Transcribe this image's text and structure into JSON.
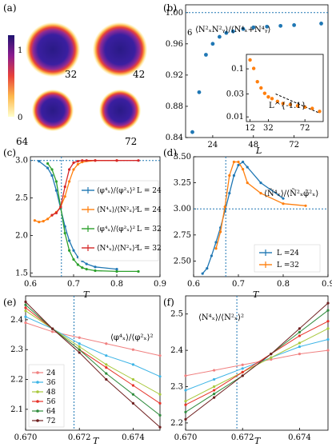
{
  "panel_a": {
    "label": "(a)",
    "colorbar_ticks": [
      "1",
      "0"
    ],
    "disk_labels": [
      "32",
      "42",
      "64",
      "72"
    ]
  },
  "chart_data": [
    {
      "panel": "b",
      "label": "(b)",
      "type": "scatter",
      "annotation": "⟨N²ₓN²ᵧ⟩/⟨N⁴ₓ+N⁴ᵧ⟩",
      "reference_value": 1.0,
      "reference_value_label": "6",
      "xlabel": "L",
      "xticks": [
        24,
        48,
        72
      ],
      "xlim": [
        8,
        92
      ],
      "ylim": [
        0.84,
        1.01
      ],
      "yticks": [
        "0.84",
        "0.88",
        "0.92",
        "0.96",
        "1.00"
      ],
      "series": [
        {
          "color": "#1f77b4",
          "x": [
            12,
            16,
            20,
            24,
            28,
            32,
            36,
            42,
            48,
            56,
            64,
            72,
            88
          ],
          "y": [
            0.847,
            0.898,
            0.946,
            0.96,
            0.969,
            0.974,
            0.976,
            0.979,
            0.981,
            0.982,
            0.983,
            0.984,
            0.986
          ]
        }
      ],
      "inset": {
        "type": "scatter",
        "log_y": true,
        "annotation": "L^{-1.1}",
        "xticks": [
          12,
          32,
          72
        ],
        "yticks": [
          "0.1",
          "0.03",
          "0.01"
        ],
        "xlim": [
          8,
          92
        ],
        "ylim": [
          0.008,
          0.2
        ],
        "points": {
          "color": "#ff7f0e",
          "x": [
            12,
            16,
            20,
            24,
            28,
            32,
            36,
            42,
            48,
            56,
            64,
            72,
            80,
            88
          ],
          "y": [
            0.153,
            0.102,
            0.054,
            0.04,
            0.031,
            0.026,
            0.024,
            0.021,
            0.019,
            0.018,
            0.017,
            0.016,
            0.015,
            0.013
          ]
        },
        "fit": {
          "x": [
            40,
            88
          ],
          "y": [
            0.03,
            0.012
          ]
        }
      }
    },
    {
      "panel": "c",
      "label": "(c)",
      "type": "line",
      "xlabel": "T",
      "xlim": [
        0.6,
        0.9
      ],
      "ylim": [
        1.45,
        3.05
      ],
      "xticks": [
        "0.6",
        "0.7",
        "0.8",
        "0.9"
      ],
      "yticks": [
        "1.5",
        "2.0",
        "2.5",
        "3.0"
      ],
      "critical_T": 0.6718,
      "reference_value": 3.0,
      "series": [
        {
          "name": "⟨φ⁴ₓ⟩/⟨φ²ₓ⟩² L = 24",
          "color": "#1f77b4",
          "x": [
            0.62,
            0.64,
            0.65,
            0.66,
            0.67,
            0.68,
            0.69,
            0.7,
            0.71,
            0.72,
            0.73,
            0.75,
            0.8
          ],
          "y": [
            2.99,
            2.9,
            2.8,
            2.6,
            2.36,
            2.12,
            1.93,
            1.8,
            1.71,
            1.66,
            1.62,
            1.58,
            1.55
          ]
        },
        {
          "name": "⟨N⁴ₓ⟩/⟨N²ₓ⟩² L = 24",
          "color": "#ff7f0e",
          "x": [
            0.61,
            0.62,
            0.63,
            0.64,
            0.65,
            0.66,
            0.67,
            0.68,
            0.69,
            0.7,
            0.71,
            0.72,
            0.75,
            0.8
          ],
          "y": [
            2.2,
            2.18,
            2.19,
            2.22,
            2.27,
            2.31,
            2.38,
            2.52,
            2.72,
            2.88,
            2.95,
            2.98,
            3.0,
            3.0
          ]
        },
        {
          "name": "⟨φ⁴ₓ⟩/⟨φ²ₓ⟩² L = 32",
          "color": "#2ca02c",
          "x": [
            0.64,
            0.65,
            0.66,
            0.67,
            0.68,
            0.69,
            0.7,
            0.71,
            0.72,
            0.73,
            0.75,
            0.8,
            0.85
          ],
          "y": [
            2.96,
            2.88,
            2.72,
            2.38,
            2.03,
            1.8,
            1.68,
            1.61,
            1.57,
            1.55,
            1.53,
            1.52,
            1.52
          ]
        },
        {
          "name": "⟨N⁴ₓ⟩/⟨N²ₓ⟩² L = 32",
          "color": "#d62728",
          "x": [
            0.65,
            0.66,
            0.67,
            0.68,
            0.69,
            0.7,
            0.71,
            0.72,
            0.73,
            0.75,
            0.8,
            0.85
          ],
          "y": [
            2.27,
            2.3,
            2.38,
            2.65,
            2.88,
            2.97,
            2.99,
            3.0,
            3.0,
            3.0,
            3.0,
            3.0
          ]
        }
      ],
      "legend_position": "center-right",
      "legend_labels": [
        {
          "ratio": "⟨φ⁴ₓ⟩/⟨φ²ₓ⟩²",
          "L": "L = 24"
        },
        {
          "ratio": "⟨N⁴ₓ⟩/⟨N²ₓ⟩²",
          "L": "L = 24"
        },
        {
          "ratio": "⟨φ⁴ₓ⟩/⟨φ²ₓ⟩²",
          "L": "L = 32"
        },
        {
          "ratio": "⟨N⁴ₓ⟩/⟨N²ₓ⟩²",
          "L": "L = 32"
        }
      ]
    },
    {
      "panel": "d",
      "label": "(d)",
      "type": "line",
      "xlabel": "T",
      "annotation": "⟨Ñ⁴ₓ⟩/⟨Ñ²ₓφ̃²ₓ⟩",
      "xlim": [
        0.6,
        0.9
      ],
      "ylim": [
        2.35,
        3.5
      ],
      "xticks": [
        "0.6",
        "0.7",
        "0.8",
        "0.9"
      ],
      "yticks": [
        "2.50",
        "2.75",
        "3.00",
        "3.25",
        "3.50"
      ],
      "critical_T": 0.6718,
      "reference_value": 3.0,
      "series": [
        {
          "name": "L =24",
          "color": "#1f77b4",
          "x": [
            0.62,
            0.63,
            0.64,
            0.65,
            0.66,
            0.67,
            0.68,
            0.69,
            0.7,
            0.71,
            0.72,
            0.75,
            0.8
          ],
          "y": [
            2.38,
            2.43,
            2.55,
            2.68,
            2.82,
            2.98,
            3.15,
            3.32,
            3.42,
            3.45,
            3.4,
            3.25,
            3.1
          ]
        },
        {
          "name": "L =32",
          "color": "#ff7f0e",
          "x": [
            0.65,
            0.66,
            0.67,
            0.68,
            0.69,
            0.7,
            0.71,
            0.72,
            0.75,
            0.8,
            0.85
          ],
          "y": [
            2.62,
            2.78,
            3.02,
            3.32,
            3.45,
            3.45,
            3.38,
            3.25,
            3.15,
            3.05,
            3.03
          ]
        }
      ],
      "legend_position": "lower-right"
    },
    {
      "panel": "e",
      "label": "(e)",
      "type": "line",
      "xlabel": "T",
      "annotation": "⟨φ⁴ₓ⟩/⟨φ²ₓ⟩²",
      "xlim": [
        0.67,
        0.675
      ],
      "ylim": [
        2.03,
        2.48
      ],
      "xticks": [
        "0.670",
        "0.672",
        "0.674"
      ],
      "yticks": [
        "2.1",
        "2.2",
        "2.3",
        "2.4"
      ],
      "critical_T": 0.6718,
      "series": [
        {
          "name": "24",
          "color": "#f08080",
          "x": [
            0.67,
            0.671,
            0.672,
            0.673,
            0.674,
            0.675
          ],
          "y": [
            2.39,
            2.36,
            2.34,
            2.32,
            2.3,
            2.28
          ]
        },
        {
          "name": "36",
          "color": "#3cb4e6",
          "x": [
            0.67,
            0.671,
            0.672,
            0.673,
            0.674,
            0.675
          ],
          "y": [
            2.41,
            2.37,
            2.32,
            2.28,
            2.25,
            2.21
          ]
        },
        {
          "name": "48",
          "color": "#a8c83c",
          "x": [
            0.67,
            0.671,
            0.672,
            0.673,
            0.674,
            0.675
          ],
          "y": [
            2.43,
            2.37,
            2.31,
            2.25,
            2.2,
            2.15
          ]
        },
        {
          "name": "56",
          "color": "#e63228",
          "x": [
            0.67,
            0.671,
            0.672,
            0.673,
            0.674,
            0.675
          ],
          "y": [
            2.44,
            2.37,
            2.3,
            2.24,
            2.18,
            2.12
          ]
        },
        {
          "name": "64",
          "color": "#2e8b3c",
          "x": [
            0.67,
            0.671,
            0.672,
            0.673,
            0.674,
            0.675
          ],
          "y": [
            2.45,
            2.37,
            2.3,
            2.22,
            2.15,
            2.08
          ]
        },
        {
          "name": "72",
          "color": "#6e1e1e",
          "x": [
            0.67,
            0.671,
            0.672,
            0.673,
            0.674,
            0.675
          ],
          "y": [
            2.46,
            2.37,
            2.29,
            2.2,
            2.12,
            2.04
          ]
        }
      ],
      "legend_position": "lower-left"
    },
    {
      "panel": "f",
      "label": "(f)",
      "type": "line",
      "xlabel": "T",
      "annotation": "⟨N⁴ₓ⟩/⟨N²ₓ⟩²",
      "xlim": [
        0.67,
        0.675
      ],
      "ylim": [
        2.18,
        2.55
      ],
      "xticks": [
        "0.670",
        "0.672",
        "0.674"
      ],
      "yticks": [
        "2.2",
        "2.3",
        "2.4",
        "2.5"
      ],
      "critical_T": 0.6718,
      "series": [
        {
          "name": "24",
          "color": "#f08080",
          "x": [
            0.67,
            0.671,
            0.672,
            0.673,
            0.674,
            0.675
          ],
          "y": [
            2.33,
            2.345,
            2.36,
            2.375,
            2.39,
            2.4
          ]
        },
        {
          "name": "36",
          "color": "#3cb4e6",
          "x": [
            0.67,
            0.671,
            0.672,
            0.673,
            0.674,
            0.675
          ],
          "y": [
            2.29,
            2.32,
            2.35,
            2.38,
            2.41,
            2.43
          ]
        },
        {
          "name": "48",
          "color": "#a8c83c",
          "x": [
            0.67,
            0.671,
            0.672,
            0.673,
            0.674,
            0.675
          ],
          "y": [
            2.26,
            2.3,
            2.34,
            2.38,
            2.42,
            2.46
          ]
        },
        {
          "name": "56",
          "color": "#e63228",
          "x": [
            0.67,
            0.671,
            0.672,
            0.673,
            0.674,
            0.675
          ],
          "y": [
            2.25,
            2.29,
            2.34,
            2.39,
            2.44,
            2.48
          ]
        },
        {
          "name": "64",
          "color": "#2e8b3c",
          "x": [
            0.67,
            0.671,
            0.672,
            0.673,
            0.674,
            0.675
          ],
          "y": [
            2.23,
            2.28,
            2.33,
            2.39,
            2.45,
            2.51
          ]
        },
        {
          "name": "72",
          "color": "#6e1e1e",
          "x": [
            0.67,
            0.671,
            0.672,
            0.673,
            0.674,
            0.675
          ],
          "y": [
            2.21,
            2.27,
            2.33,
            2.39,
            2.46,
            2.53
          ]
        }
      ]
    }
  ]
}
